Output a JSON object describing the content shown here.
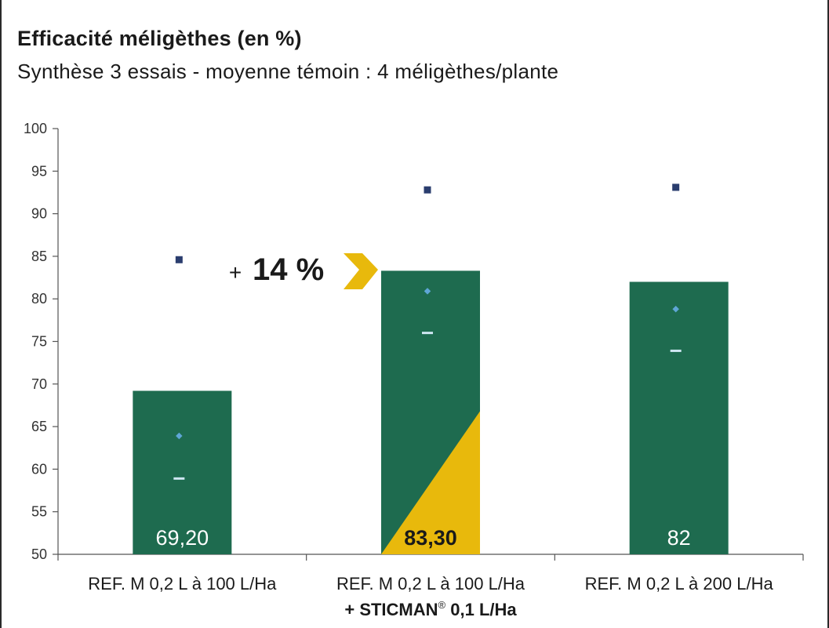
{
  "title": "Efficacité méligèthes (en %)",
  "subtitle": "Synthèse 3 essais - moyenne témoin : 4 méligèthes/plante",
  "chart_data": {
    "type": "bar",
    "ylim": [
      50,
      100
    ],
    "yticks": [
      50,
      55,
      60,
      65,
      70,
      75,
      80,
      85,
      90,
      95,
      100
    ],
    "ytick_labels": [
      "50",
      "55",
      "60",
      "65",
      "70",
      "75",
      "80",
      "85",
      "90",
      "95",
      "100"
    ],
    "categories": [
      {
        "line1": "REF. M 0,2 L à 100 L/Ha",
        "line2_prefix": "",
        "line2_sup": "",
        "line2_suffix": ""
      },
      {
        "line1": "REF. M 0,2 L à 100 L/Ha",
        "line2_prefix": "+ STICMAN",
        "line2_sup": "®",
        "line2_suffix": " 0,1 L/Ha"
      },
      {
        "line1": "REF. M 0,2 L à 200 L/Ha",
        "line2_prefix": "",
        "line2_sup": "",
        "line2_suffix": ""
      }
    ],
    "values": [
      69.2,
      83.3,
      82
    ],
    "value_labels": [
      "69,20",
      "83,30",
      "82"
    ],
    "max_markers": [
      84.6,
      92.8,
      93.1
    ],
    "median_markers": [
      63.9,
      80.9,
      78.8
    ],
    "min_markers": [
      58.9,
      76.0,
      73.9
    ],
    "highlight_index": 1,
    "annotation": {
      "plus": "+",
      "text": "14 %"
    },
    "grid": false,
    "legend": "none"
  },
  "colors": {
    "bar": "#1e6b4f",
    "highlight": "#e8b90c",
    "max_marker": "#2a3d6e",
    "median_marker": "#5fa6d6",
    "min_marker": "#cfe6f2",
    "axis": "#555555"
  }
}
